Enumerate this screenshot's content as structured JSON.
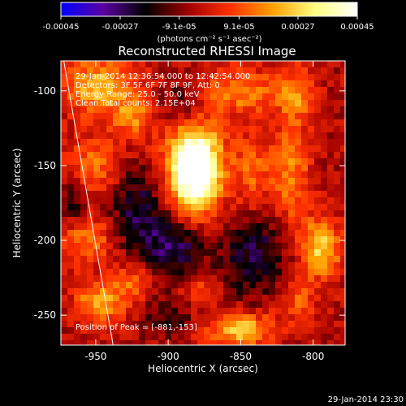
{
  "colorbar": {
    "tick_labels": [
      "-0.00045",
      "-0.00027",
      "-9.1e-05",
      "9.1e-05",
      "0.00027",
      "0.00045"
    ],
    "tick_values": [
      -0.00045,
      -0.00027,
      -9.1e-05,
      9.1e-05,
      0.00027,
      0.00045
    ],
    "range": [
      -0.00045,
      0.00045
    ],
    "units_label": "(photons cm⁻² s⁻¹ asec⁻²)",
    "colors": [
      "#0000ff",
      "#5a00a0",
      "#000000",
      "#a00000",
      "#ff3000",
      "#ffa000",
      "#ffff80",
      "#ffffff"
    ]
  },
  "chart_data": {
    "type": "heatmap",
    "title": "Reconstructed RHESSI Image",
    "xlabel": "Heliocentric X (arcsec)",
    "ylabel": "Heliocentric Y (arcsec)",
    "xlim": [
      -974,
      -778
    ],
    "ylim": [
      -270,
      -80
    ],
    "x_ticks": [
      -950,
      -900,
      -850,
      -800
    ],
    "y_ticks": [
      -250,
      -200,
      -150,
      -100
    ],
    "x_tick_labels": [
      "-950",
      "-900",
      "-850",
      "-800"
    ],
    "y_tick_labels": [
      "-250",
      "-200",
      "-150",
      "-100"
    ],
    "annotations": [
      "29-Jan-2014 12:36:54.000 to 12:42:54.000",
      "Detectors: 3F 5F 6F 7F 8F 9F, Att: 0",
      "Energy Range: 25.0 - 50.0 keV",
      "Clean    Total counts: 2.15E+04"
    ],
    "peak_label": "Position of Peak = [-881,-153]",
    "peak": [
      -881,
      -153
    ],
    "limb_line": [
      [
        -972,
        -80
      ],
      [
        -938,
        -270
      ]
    ],
    "sources": [
      {
        "x": -881,
        "y": -153,
        "amp": 0.00045,
        "sx": 11,
        "sy": 17
      },
      {
        "x": -884,
        "y": -148,
        "amp": 0.00025,
        "sx": 16,
        "sy": 26
      },
      {
        "x": -948,
        "y": -97,
        "amp": 0.00026,
        "sx": 18,
        "sy": 14
      },
      {
        "x": -924,
        "y": -118,
        "amp": 0.00018,
        "sx": 10,
        "sy": 10
      },
      {
        "x": -950,
        "y": -150,
        "amp": 0.00017,
        "sx": 14,
        "sy": 14
      },
      {
        "x": -955,
        "y": -200,
        "amp": 0.0002,
        "sx": 13,
        "sy": 11
      },
      {
        "x": -948,
        "y": -242,
        "amp": 0.00024,
        "sx": 12,
        "sy": 10
      },
      {
        "x": -925,
        "y": -228,
        "amp": 0.00016,
        "sx": 10,
        "sy": 10
      },
      {
        "x": -850,
        "y": -100,
        "amp": 0.00019,
        "sx": 20,
        "sy": 11
      },
      {
        "x": -842,
        "y": -155,
        "amp": 0.00016,
        "sx": 9,
        "sy": 18
      },
      {
        "x": -815,
        "y": -155,
        "amp": 0.0002,
        "sx": 9,
        "sy": 26
      },
      {
        "x": -812,
        "y": -102,
        "amp": 0.00018,
        "sx": 8,
        "sy": 12
      },
      {
        "x": -795,
        "y": -205,
        "amp": 0.0003,
        "sx": 10,
        "sy": 14
      },
      {
        "x": -812,
        "y": -240,
        "amp": 0.00015,
        "sx": 10,
        "sy": 10
      },
      {
        "x": -850,
        "y": -260,
        "amp": 0.0003,
        "sx": 16,
        "sy": 8
      },
      {
        "x": -880,
        "y": -232,
        "amp": 0.00013,
        "sx": 10,
        "sy": 8
      },
      {
        "x": -920,
        "y": -180,
        "amp": -0.0002,
        "sx": 14,
        "sy": 22
      },
      {
        "x": -895,
        "y": -205,
        "amp": -0.00022,
        "sx": 14,
        "sy": 14
      },
      {
        "x": -840,
        "y": -210,
        "amp": -0.0002,
        "sx": 16,
        "sy": 20
      },
      {
        "x": -890,
        "y": -110,
        "amp": -0.00016,
        "sx": 12,
        "sy": 12
      },
      {
        "x": -965,
        "y": -175,
        "amp": -0.00015,
        "sx": 6,
        "sy": 10
      },
      {
        "x": -900,
        "y": -250,
        "amp": -0.00012,
        "sx": 12,
        "sy": 10
      }
    ]
  },
  "footer": {
    "timestamp": "29-Jan-2014 23:30"
  }
}
